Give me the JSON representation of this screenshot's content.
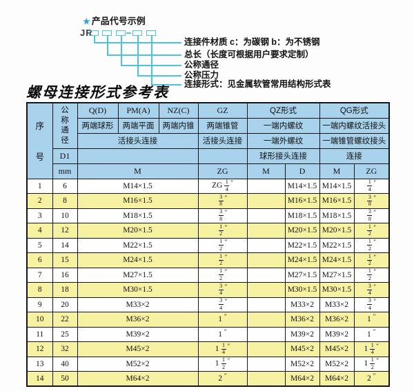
{
  "product_code": {
    "star": "★",
    "title": "产品代号示例",
    "prefix": "JR",
    "labels": [
      "连接件材质  c：为碳钢  b：为不锈钢",
      "总长（长度可根据用户要求定制）",
      "公称通径",
      "公称压力",
      "连接形式：见金属软管常用结构形式表"
    ]
  },
  "table_title": "螺母连接形式参考表",
  "table": {
    "header": {
      "seq": "序号",
      "dn": "公称通径",
      "d1": "D1",
      "mm": "mm",
      "q": "Q(D)",
      "q_desc": "两端球形",
      "pm": "PM(A)",
      "pm_desc": "两端平面",
      "nz": "NZ(C)",
      "nz_desc": "两端内锥",
      "union_conn": "活接头连接",
      "gz": "GZ",
      "gz_desc": "两端锥管",
      "gz_conn": "活接头连接",
      "qz": "QZ形式",
      "qz_row2": "一端内螺纹",
      "qz_row3": "一端外螺纹",
      "qz_row4": "球形接头连接",
      "qg": "QG形式",
      "qg_row2": "一端内螺纹活接头",
      "qg_row3": "一端锥管螺纹接头",
      "qg_row4": "连接",
      "m": "M",
      "zg": "ZG",
      "d": "D"
    },
    "rows": [
      {
        "no": "1",
        "dn": "6",
        "m": "M14×1.5",
        "gz": "ZG 1/4\"",
        "qz_m": "",
        "qz_d": "M14×1.5",
        "qg_m": "M14×1.5",
        "qg_zg": "1/4\""
      },
      {
        "no": "2",
        "dn": "8",
        "m": "M16×1.5",
        "gz": "3/8\"",
        "qz_m": "",
        "qz_d": "M16×1.5",
        "qg_m": "M16×1.5",
        "qg_zg": "3/8\""
      },
      {
        "no": "3",
        "dn": "10",
        "m": "M18×1.5",
        "gz": "3/8\"",
        "qz_m": "",
        "qz_d": "M18×1.5",
        "qg_m": "M18×1.5",
        "qg_zg": "3/8\""
      },
      {
        "no": "4",
        "dn": "12",
        "m": "M20×1.5",
        "gz": "1/2\"",
        "qz_m": "",
        "qz_d": "M20×1.5",
        "qg_m": "M20×1.5",
        "qg_zg": "1/2\""
      },
      {
        "no": "5",
        "dn": "14",
        "m": "M22×1.5",
        "gz": "1/2\"",
        "qz_m": "",
        "qz_d": "M22×1.5",
        "qg_m": "M22×1.5",
        "qg_zg": "1/2\""
      },
      {
        "no": "6",
        "dn": "15",
        "m": "M24×1.5",
        "gz": "1/2\"",
        "qz_m": "",
        "qz_d": "M24×1.5",
        "qg_m": "M24×1.5",
        "qg_zg": "1/2\""
      },
      {
        "no": "7",
        "dn": "16",
        "m": "M27×1.5",
        "gz": "1/2\"",
        "qz_m": "",
        "qz_d": "M27×1.5",
        "qg_m": "M27×1.5",
        "qg_zg": "1/2\""
      },
      {
        "no": "8",
        "dn": "18",
        "m": "M30×1.5",
        "gz": "3/4\"",
        "qz_m": "",
        "qz_d": "M30×1.5",
        "qg_m": "M30×1.5",
        "qg_zg": "3/4\""
      },
      {
        "no": "9",
        "dn": "20",
        "m": "M33×2",
        "gz": "3/4\"",
        "qz_m": "",
        "qz_d": "M33×2",
        "qg_m": "M33×2",
        "qg_zg": "3/4\""
      },
      {
        "no": "10",
        "dn": "22",
        "m": "M36×2",
        "gz": "1\"",
        "qz_m": "",
        "qz_d": "M36×2",
        "qg_m": "M36×2",
        "qg_zg": "1\""
      },
      {
        "no": "11",
        "dn": "25",
        "m": "M39×2",
        "gz": "1\"",
        "qz_m": "",
        "qz_d": "M39×2",
        "qg_m": "M39×2",
        "qg_zg": "1\""
      },
      {
        "no": "12",
        "dn": "32",
        "m": "M45×2",
        "gz": "1 1/4\"",
        "qz_m": "",
        "qz_d": "M45×2",
        "qg_m": "M45×2",
        "qg_zg": "1 1/4\""
      },
      {
        "no": "13",
        "dn": "40",
        "m": "M52×2",
        "gz": "1 1/2\"",
        "qz_m": "",
        "qz_d": "M52×2",
        "qg_m": "M52×2",
        "qg_zg": "1 1/2\""
      },
      {
        "no": "14",
        "dn": "50",
        "m": "M64×2",
        "gz": "2\"",
        "qz_m": "",
        "qz_d": "M64×2",
        "qg_m": "M64×2",
        "qg_zg": "2\""
      }
    ]
  },
  "colors": {
    "accent_cyan": "#4cc3da",
    "star_blue": "#2aa7d6",
    "header_blue": "#a9d2ec",
    "row_yellow": "#f7f1a2",
    "border_dark": "#141414"
  }
}
